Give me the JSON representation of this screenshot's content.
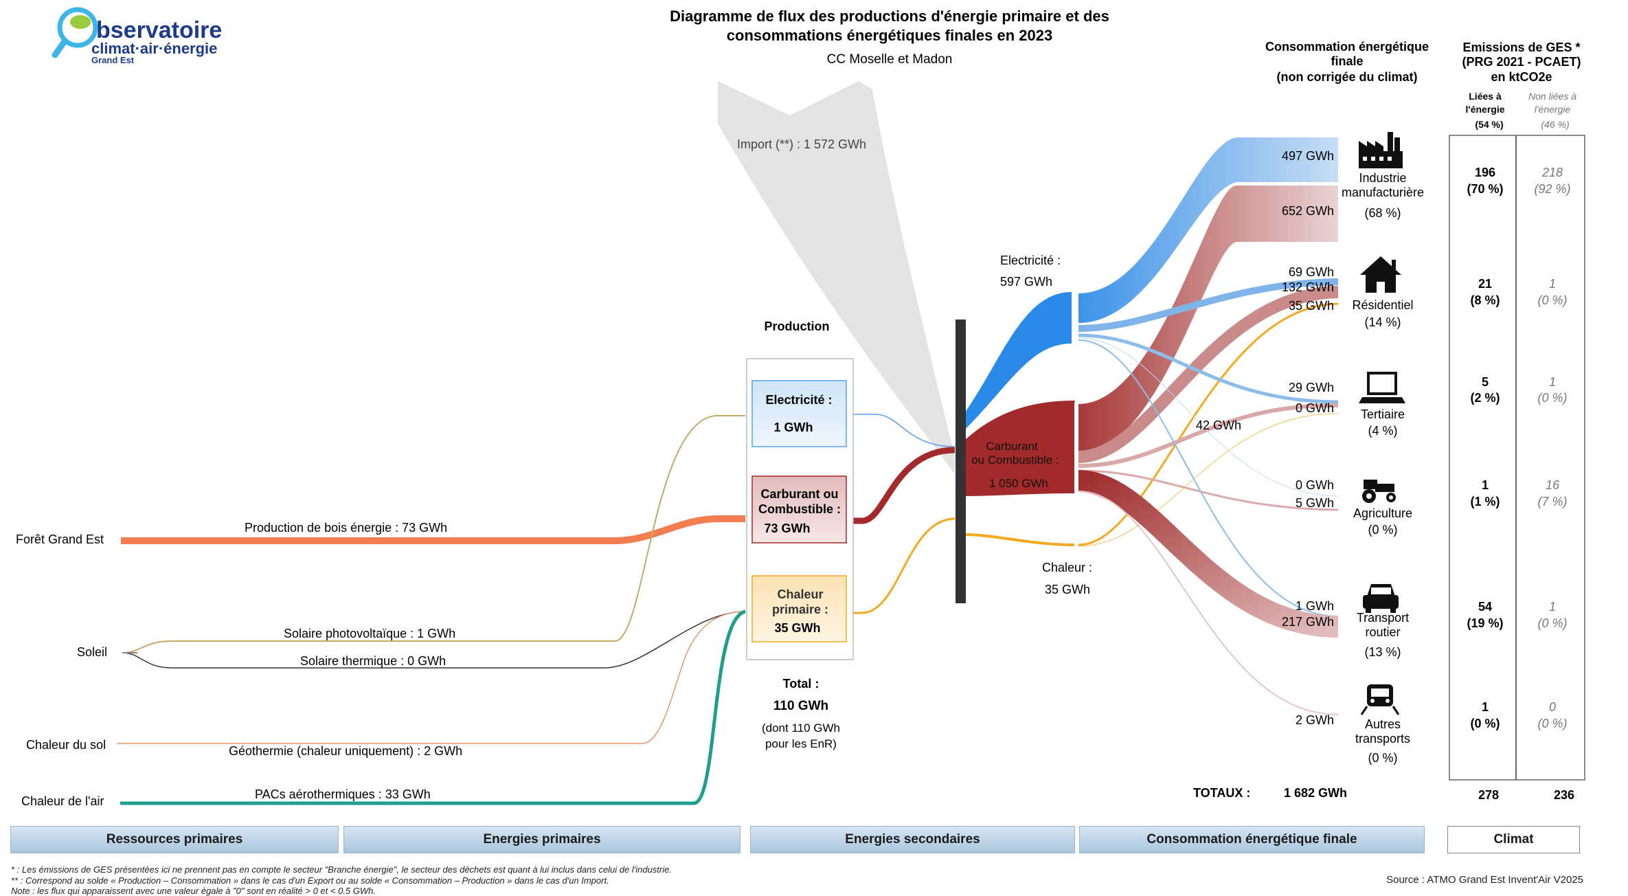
{
  "logo": {
    "line1": "bservatoire",
    "line2": "climat·air·énergie",
    "line3": "Grand Est"
  },
  "title": {
    "line1": "Diagramme de flux des productions d'énergie primaire et des",
    "line2": "consommations énergétiques finales en 2023",
    "subtitle": "CC Moselle et Madon"
  },
  "import_label": "Import (**) : 1 572 GWh",
  "production_heading": "Production",
  "sources": {
    "foret": "Forêt Grand Est",
    "soleil": "Soleil",
    "sol": "Chaleur du sol",
    "air": "Chaleur de l'air"
  },
  "flows": {
    "bois": "Production de bois énergie :  73 GWh",
    "pv": "Solaire photovoltaïque :  1 GWh",
    "thermique": "Solaire thermique :  0 GWh",
    "geo": "Géothermie (chaleur uniquement) :  2 GWh",
    "pac": "PACs aérothermiques :  33 GWh"
  },
  "prod_boxes": {
    "elec_l1": "Electricité :",
    "elec_l2": "1 GWh",
    "carb_l1": "Carburant ou",
    "carb_l2": "Combustible :",
    "carb_l3": "73 GWh",
    "chal_l1": "Chaleur",
    "chal_l2": "primaire :",
    "chal_l3": "35 GWh"
  },
  "total": {
    "l1": "Total :",
    "l2": "110 GWh",
    "l3": "(dont  110 GWh",
    "l4": "pour les EnR)"
  },
  "secondary": {
    "elec_l1": "Electricité :",
    "elec_l2": "597 GWh",
    "carb_l1": "Carburant",
    "carb_l2": "ou Combustible :",
    "carb_l3": "1 050 GWh",
    "chal_l1": "Chaleur :",
    "chal_l2": "35 GWh",
    "mid_label": "42 GWh"
  },
  "consumption_header": {
    "l1": "Consommation énergétique",
    "l2": "finale",
    "l3": "(non corrigée du climat)"
  },
  "ges_header": {
    "l1": "Emissions de GES *",
    "l2": "(PRG 2021 - PCAET)",
    "l3": "en ktCO2e",
    "lie_l1": "Liées à",
    "lie_l2": "l'énergie",
    "lie_pct": "(54 %)",
    "nonlie_l1": "Non liées à",
    "nonlie_l2": "l'énergie",
    "nonlie_pct": "(46 %)"
  },
  "sectors": [
    {
      "name_l1": "Industrie",
      "name_l2": "manufacturière",
      "pct": "(68 %)",
      "icon": "factory-icon",
      "flow_labels": [
        "497 GWh",
        "652 GWh"
      ],
      "ges_e": "196",
      "ges_e_pct": "(70 %)",
      "ges_n": "218",
      "ges_n_pct": "(92 %)"
    },
    {
      "name_l1": "Résidentiel",
      "name_l2": "",
      "pct": "(14 %)",
      "icon": "house-icon",
      "flow_labels": [
        "69 GWh",
        "132 GWh",
        "35 GWh"
      ],
      "ges_e": "21",
      "ges_e_pct": "(8 %)",
      "ges_n": "1",
      "ges_n_pct": "(0 %)"
    },
    {
      "name_l1": "Tertiaire",
      "name_l2": "",
      "pct": "(4 %)",
      "icon": "laptop-icon",
      "flow_labels": [
        "29 GWh",
        "0 GWh"
      ],
      "ges_e": "5",
      "ges_e_pct": "(2 %)",
      "ges_n": "1",
      "ges_n_pct": "(0 %)"
    },
    {
      "name_l1": "Agriculture",
      "name_l2": "",
      "pct": "(0 %)",
      "icon": "tractor-icon",
      "flow_labels": [
        "0 GWh",
        "5 GWh"
      ],
      "ges_e": "1",
      "ges_e_pct": "(1 %)",
      "ges_n": "16",
      "ges_n_pct": "(7 %)"
    },
    {
      "name_l1": "Transport",
      "name_l2": "routier",
      "pct": "(13 %)",
      "icon": "car-icon",
      "flow_labels": [
        "1 GWh",
        "217 GWh"
      ],
      "ges_e": "54",
      "ges_e_pct": "(19 %)",
      "ges_n": "1",
      "ges_n_pct": "(0 %)"
    },
    {
      "name_l1": "Autres",
      "name_l2": "transports",
      "pct": "(0 %)",
      "icon": "train-icon",
      "flow_labels": [
        "2 GWh"
      ],
      "ges_e": "1",
      "ges_e_pct": "(0 %)",
      "ges_n": "0",
      "ges_n_pct": "(0 %)"
    }
  ],
  "totals": {
    "label": "TOTAUX :",
    "value": "1 682 GWh",
    "ges_e": "278",
    "ges_n": "236"
  },
  "bottom_bars": {
    "b1": "Ressources primaires",
    "b2": "Energies primaires",
    "b3": "Energies secondaires",
    "b4": "Consommation énergétique finale",
    "b5": "Climat"
  },
  "footnotes": {
    "f1": "* : Les émissions de GES présentées ici ne prennent pas en compte le secteur \"Branche énergie\", le secteur des déchets est quant à lui inclus dans celui de l'industrie.",
    "f2": "** : Correspond au solde « Production – Consommation » dans le cas d'un Export ou au solde « Consommation – Production » dans le cas d'un Import.",
    "f3": "Note : les flux qui apparaissent avec une valeur égale à \"0\" sont en réalité > 0 et < 0.5 GWh.",
    "source": "Source : ATMO Grand Est Invent'Air V2025"
  },
  "colors": {
    "electricity": "#2a8ae8",
    "fuel": "#a32a2a",
    "heat": "#f5a820",
    "wood": "#f47d4f",
    "air_heat": "#1e9e8c",
    "import": "#e3e3e3",
    "node_bar": "#333333"
  }
}
